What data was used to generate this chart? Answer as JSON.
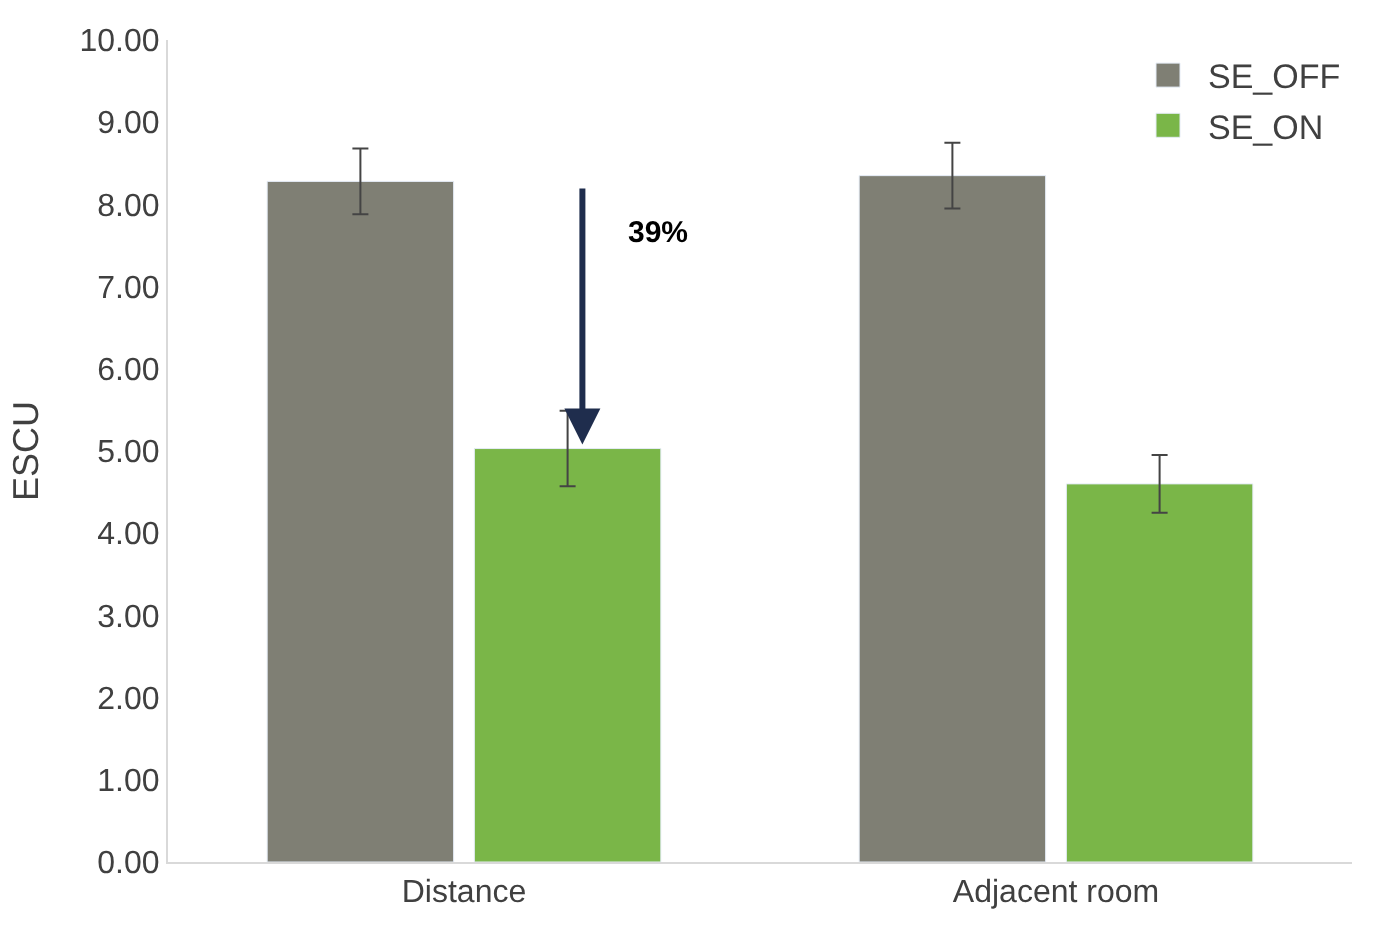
{
  "chart_data": {
    "type": "bar",
    "ylabel": "ESCU",
    "categories": [
      "Distance",
      "Adjacent room"
    ],
    "series": [
      {
        "name": "SE_OFF",
        "color": "#7f7f74",
        "values": [
          8.28,
          8.35
        ],
        "errors": [
          0.4,
          0.4
        ]
      },
      {
        "name": "SE_ON",
        "color": "#7ab648",
        "values": [
          5.03,
          4.6
        ],
        "errors": [
          0.46,
          0.35
        ]
      }
    ],
    "ylim": [
      0,
      10
    ],
    "yticks": [
      {
        "value": 0,
        "label": "0.00"
      },
      {
        "value": 1,
        "label": "1.00"
      },
      {
        "value": 2,
        "label": "2.00"
      },
      {
        "value": 3,
        "label": "3.00"
      },
      {
        "value": 4,
        "label": "4.00"
      },
      {
        "value": 5,
        "label": "5.00"
      },
      {
        "value": 6,
        "label": "6.00"
      },
      {
        "value": 7,
        "label": "7.00"
      },
      {
        "value": 8,
        "label": "8.00"
      },
      {
        "value": 9,
        "label": "9.00"
      },
      {
        "value": 10,
        "label": "10.00"
      }
    ],
    "annotations": [
      "39%"
    ],
    "grid": false,
    "legend": "top right"
  }
}
